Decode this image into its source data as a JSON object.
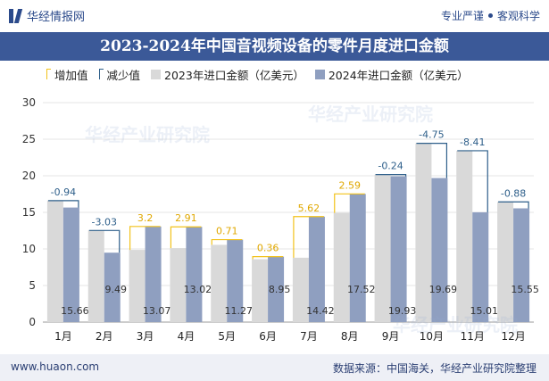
{
  "header": {
    "brand": "华经情报网",
    "slogan_left": "专业严谨",
    "slogan_right": "客观科学"
  },
  "chart_data": {
    "type": "bar",
    "title": "2023-2024年中国音视频设备的零件月度进口金额",
    "categories": [
      "1月",
      "2月",
      "3月",
      "4月",
      "5月",
      "6月",
      "7月",
      "8月",
      "9月",
      "10月",
      "11月",
      "12月"
    ],
    "series": [
      {
        "name": "2023年进口金额（亿美元）",
        "values": [
          16.6,
          12.52,
          9.87,
          10.11,
          10.56,
          8.59,
          8.8,
          14.93,
          20.17,
          24.44,
          23.42,
          16.43
        ],
        "color": "#d9d9d9"
      },
      {
        "name": "2024年进口金额（亿美元）",
        "values": [
          15.66,
          9.49,
          13.07,
          13.02,
          11.27,
          8.95,
          14.42,
          17.52,
          19.93,
          19.69,
          15.01,
          15.55
        ],
        "color": "#8f9fc0"
      }
    ],
    "value_labels_2024": [
      "15.66",
      "9.49",
      "13.07",
      "13.02",
      "11.27",
      "8.95",
      "14.42",
      "17.52",
      "19.93",
      "19.69",
      "15.01",
      "15.55"
    ],
    "change_labels": [
      "-0.94",
      "-3.03",
      "3.2",
      "2.91",
      "0.71",
      "0.36",
      "5.62",
      "2.59",
      "-0.24",
      "-4.75",
      "-8.41",
      "-0.88"
    ],
    "legend": [
      "增加值",
      "减少值",
      "2023年进口金额（亿美元）",
      "2024年进口金额（亿美元）"
    ],
    "legend_position": "top",
    "ylim": [
      0,
      30
    ],
    "yticks": [
      0,
      5,
      10,
      15,
      20,
      25,
      30
    ],
    "increase_color": "#f2c21b",
    "decrease_color": "#2e5f8a",
    "grid": true
  },
  "watermark": "华经产业研究院",
  "footer": {
    "site": "www.huaon.com",
    "source": "数据来源：中国海关，华经产业研究院整理"
  }
}
